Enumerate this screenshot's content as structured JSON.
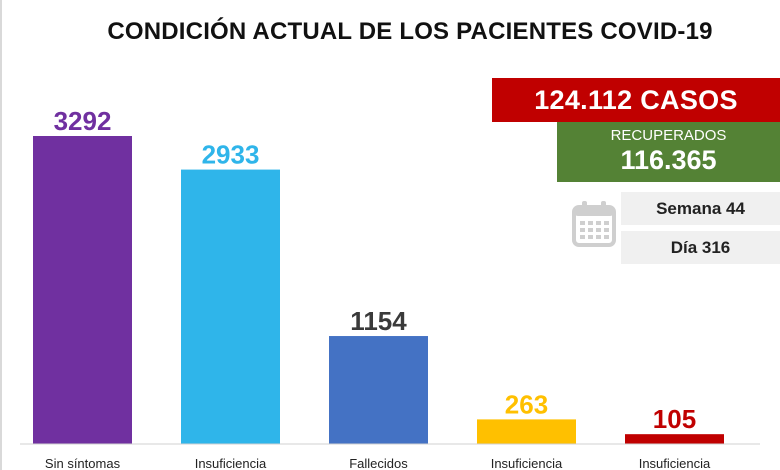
{
  "chart_data": {
    "type": "bar",
    "title": "CONDICIÓN ACTUAL DE LOS PACIENTES COVID-19",
    "categories": [
      "Sin síntomas",
      "Insuficiencia",
      "Fallecidos",
      "Insuficiencia",
      "Insuficiencia"
    ],
    "values": [
      3292,
      2933,
      1154,
      263,
      105
    ],
    "bar_colors": [
      "#7030a0",
      "#2fb5ea",
      "#4472c4",
      "#ffc000",
      "#c00000"
    ],
    "value_label_colors": [
      "#7030a0",
      "#2fb5ea",
      "#3a3a3a",
      "#ffc000",
      "#c00000"
    ],
    "ylim": [
      0,
      3500
    ],
    "grid": false,
    "legend": "none"
  },
  "summary": {
    "casos": "124.112 CASOS",
    "recuperados_label": "RECUPERADOS",
    "recuperados_value": "116.365",
    "semana": "Semana 44",
    "dia": "Día 316",
    "casos_color": "#c00000",
    "recuperados_color": "#548235"
  },
  "icons": {
    "calendar": "calendar-icon"
  }
}
